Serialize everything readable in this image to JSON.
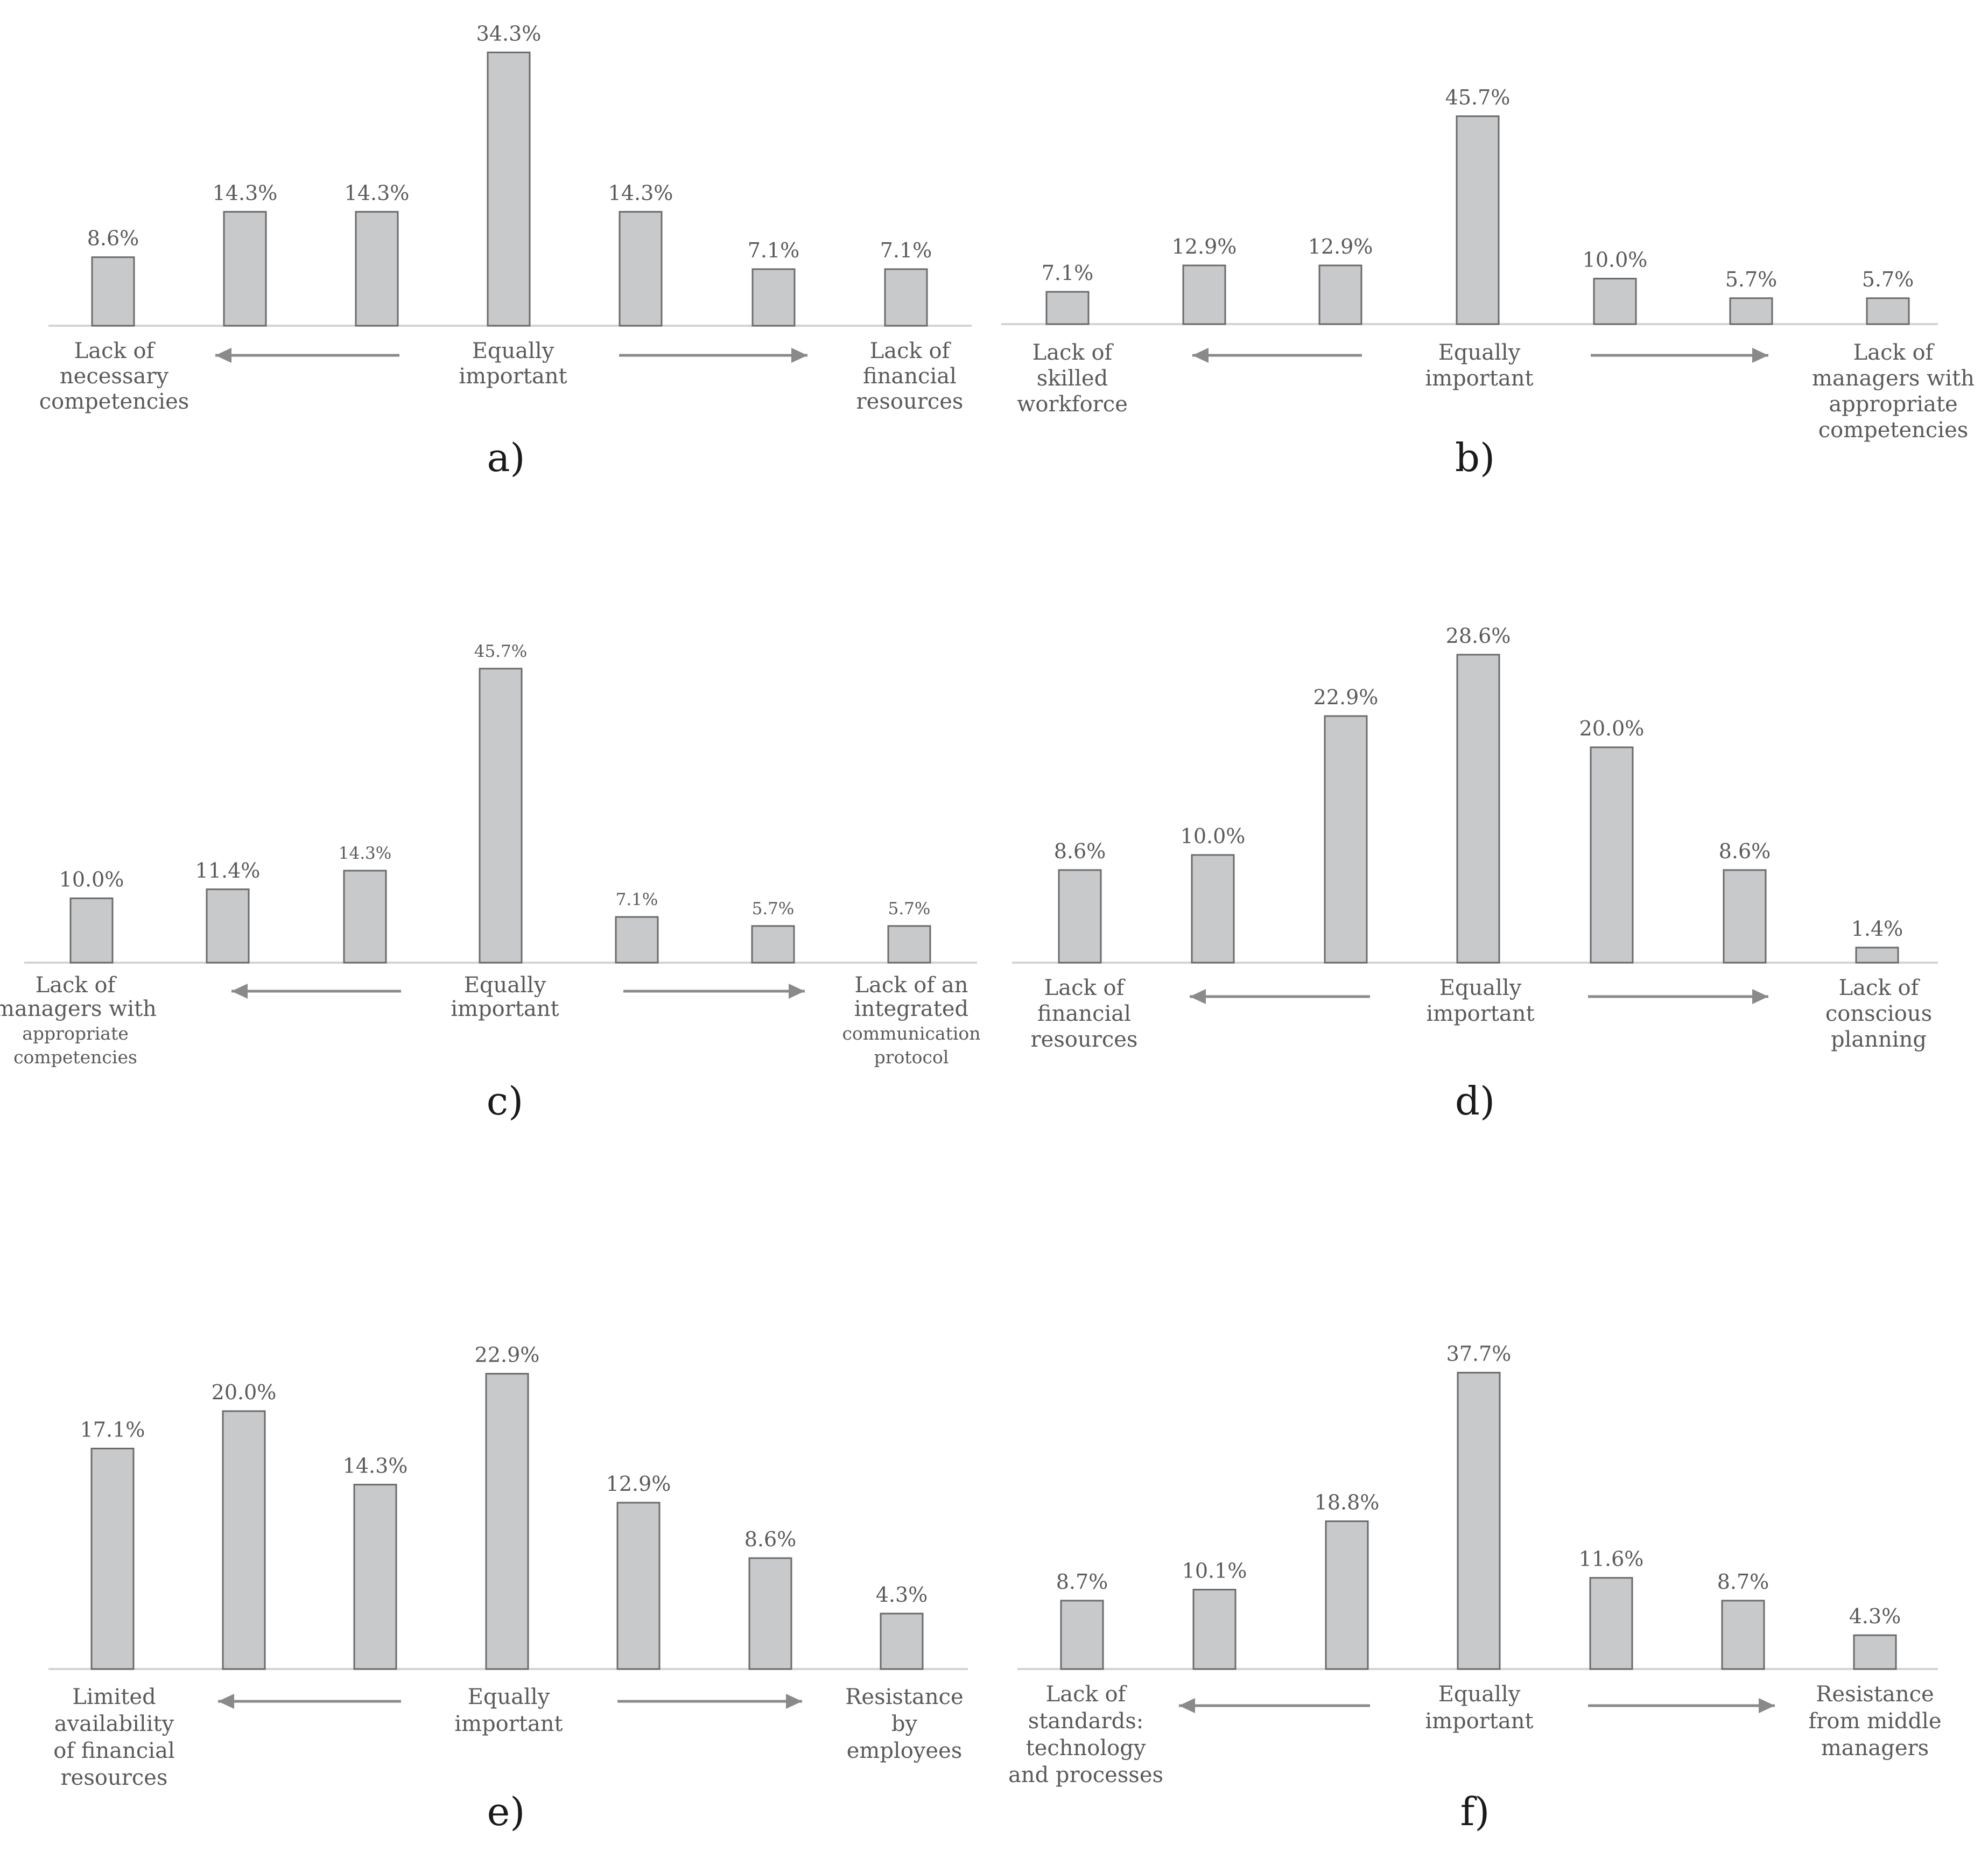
{
  "chart_data": [
    {
      "panel_label": "a)",
      "type": "bar",
      "values": [
        8.6,
        14.3,
        14.3,
        34.3,
        14.3,
        7.1,
        7.1
      ],
      "labels": [
        "8.6%",
        "14.3%",
        "14.3%",
        "34.3%",
        "14.3%",
        "7.1%",
        "7.1%"
      ],
      "left_label": [
        "Lack of",
        "necessary",
        "competencies"
      ],
      "center_label": [
        "Equally",
        "important"
      ],
      "right_label": [
        "Lack of",
        "financial",
        "resources"
      ]
    },
    {
      "panel_label": "b)",
      "type": "bar",
      "values": [
        7.1,
        12.9,
        12.9,
        45.7,
        10.0,
        5.7,
        5.7
      ],
      "labels": [
        "7.1%",
        "12.9%",
        "12.9%",
        "45.7%",
        "10.0%",
        "5.7%",
        "5.7%"
      ],
      "left_label": [
        "Lack of",
        "skilled",
        "workforce"
      ],
      "center_label": [
        "Equally",
        "important"
      ],
      "right_label": [
        "Lack of",
        "managers with",
        "appropriate",
        "competencies"
      ]
    },
    {
      "panel_label": "c)",
      "type": "bar",
      "values": [
        10.0,
        11.4,
        14.3,
        45.7,
        7.1,
        5.7,
        5.7
      ],
      "labels": [
        "10.0%",
        "11.4%",
        "14.3%",
        "45.7%",
        "7.1%",
        "5.7%",
        "5.7%"
      ],
      "left_label": [
        "Lack of",
        "managers with",
        "appropriate",
        "competencies"
      ],
      "center_label": [
        "Equally",
        "important"
      ],
      "right_label": [
        "Lack of an",
        "integrated",
        "communication",
        "protocol"
      ]
    },
    {
      "panel_label": "d)",
      "type": "bar",
      "values": [
        8.6,
        10.0,
        22.9,
        28.6,
        20.0,
        8.6,
        1.4
      ],
      "labels": [
        "8.6%",
        "10.0%",
        "22.9%",
        "28.6%",
        "20.0%",
        "8.6%",
        "1.4%"
      ],
      "left_label": [
        "Lack of",
        "financial",
        "resources"
      ],
      "center_label": [
        "Equally",
        "important"
      ],
      "right_label": [
        "Lack of",
        "conscious",
        "planning"
      ]
    },
    {
      "panel_label": "e)",
      "type": "bar",
      "values": [
        17.1,
        20.0,
        14.3,
        22.9,
        12.9,
        8.6,
        4.3
      ],
      "labels": [
        "17.1%",
        "20.0%",
        "14.3%",
        "22.9%",
        "12.9%",
        "8.6%",
        "4.3%"
      ],
      "left_label": [
        "Limited",
        "availability",
        "of financial",
        "resources"
      ],
      "center_label": [
        "Equally",
        "important"
      ],
      "right_label": [
        "Resistance",
        "by",
        "employees"
      ]
    },
    {
      "panel_label": "f)",
      "type": "bar",
      "values": [
        8.7,
        10.1,
        18.8,
        37.7,
        11.6,
        8.7,
        4.3
      ],
      "labels": [
        "8.7%",
        "10.1%",
        "18.8%",
        "37.7%",
        "11.6%",
        "8.7%",
        "4.3%"
      ],
      "left_label": [
        "Lack of",
        "standards:",
        "technology",
        "and processes"
      ],
      "center_label": [
        "Equally",
        "important"
      ],
      "right_label": [
        "Resistance",
        "from middle",
        "managers"
      ]
    }
  ]
}
